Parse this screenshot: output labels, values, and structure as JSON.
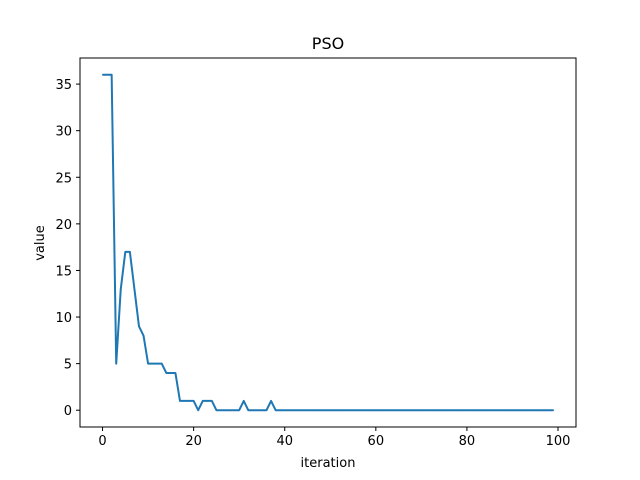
{
  "chart_data": {
    "type": "line",
    "title": "PSO",
    "xlabel": "iteration",
    "ylabel": "value",
    "xlim": [
      -4.95,
      103.95
    ],
    "ylim": [
      -1.8,
      37.8
    ],
    "xticks": [
      0,
      20,
      40,
      60,
      80,
      100
    ],
    "yticks": [
      0,
      5,
      10,
      15,
      20,
      25,
      30,
      35
    ],
    "xtick_labels": [
      "0",
      "20",
      "40",
      "60",
      "80",
      "100"
    ],
    "ytick_labels": [
      "0",
      "5",
      "10",
      "15",
      "20",
      "25",
      "30",
      "35"
    ],
    "grid": false,
    "series": [
      {
        "color": "#1f77b4",
        "x": [
          0,
          1,
          2,
          3,
          4,
          5,
          6,
          7,
          8,
          9,
          10,
          11,
          12,
          13,
          14,
          15,
          16,
          17,
          18,
          19,
          20,
          21,
          22,
          23,
          24,
          25,
          26,
          27,
          28,
          29,
          30,
          31,
          32,
          33,
          34,
          35,
          36,
          37,
          38,
          39,
          40,
          41,
          42,
          43,
          44,
          45,
          46,
          47,
          48,
          49,
          50,
          51,
          52,
          53,
          54,
          55,
          56,
          57,
          58,
          59,
          60,
          61,
          62,
          63,
          64,
          65,
          66,
          67,
          68,
          69,
          70,
          71,
          72,
          73,
          74,
          75,
          76,
          77,
          78,
          79,
          80,
          81,
          82,
          83,
          84,
          85,
          86,
          87,
          88,
          89,
          90,
          91,
          92,
          93,
          94,
          95,
          96,
          97,
          98,
          99
        ],
        "values": [
          36,
          36,
          36,
          5,
          13,
          17,
          17,
          13,
          9,
          8,
          5,
          5,
          5,
          5,
          4,
          4,
          4,
          1,
          1,
          1,
          1,
          0,
          1,
          1,
          1,
          0,
          0,
          0,
          0,
          0,
          0,
          1,
          0,
          0,
          0,
          0,
          0,
          1,
          0,
          0,
          0,
          0,
          0,
          0,
          0,
          0,
          0,
          0,
          0,
          0,
          0,
          0,
          0,
          0,
          0,
          0,
          0,
          0,
          0,
          0,
          0,
          0,
          0,
          0,
          0,
          0,
          0,
          0,
          0,
          0,
          0,
          0,
          0,
          0,
          0,
          0,
          0,
          0,
          0,
          0,
          0,
          0,
          0,
          0,
          0,
          0,
          0,
          0,
          0,
          0,
          0,
          0,
          0,
          0,
          0,
          0,
          0,
          0,
          0,
          0
        ]
      }
    ]
  }
}
